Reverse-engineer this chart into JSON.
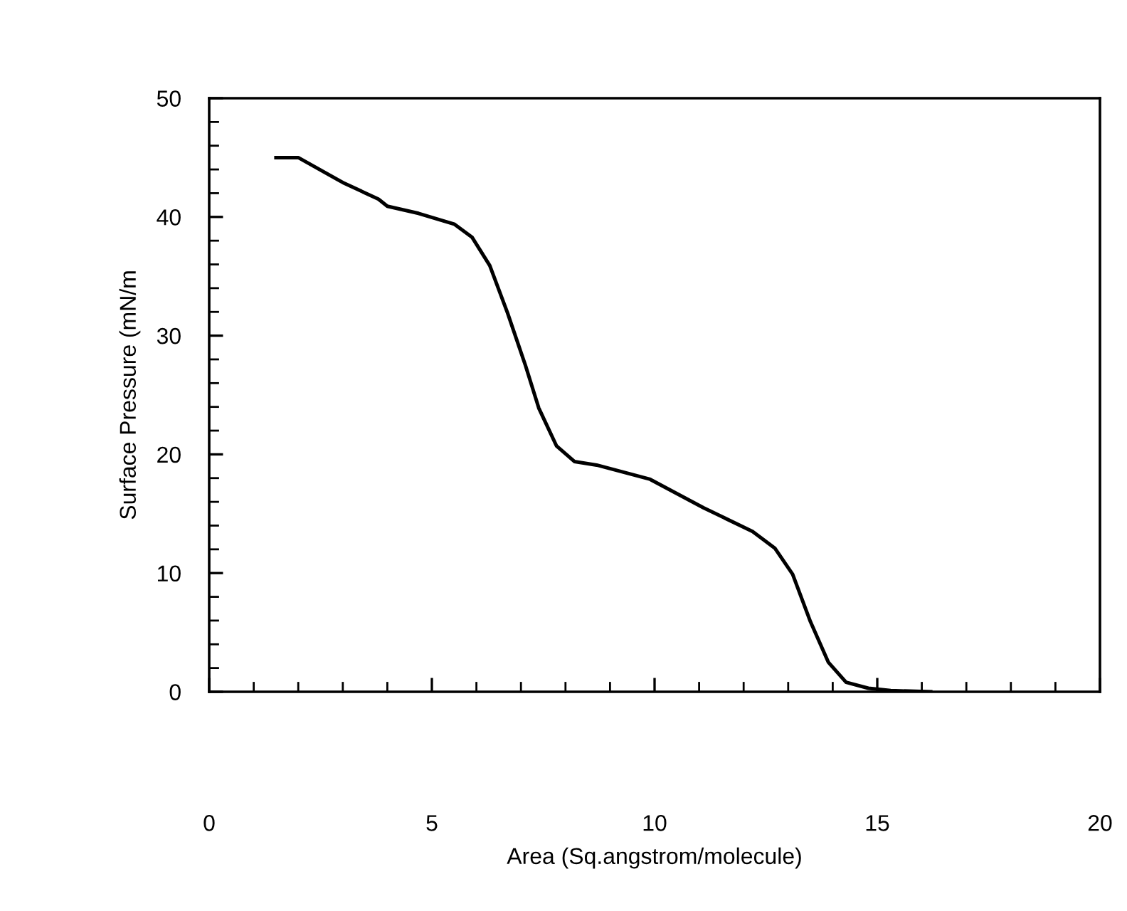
{
  "chart_data": {
    "type": "line",
    "xlabel": "Area (Sq.angstrom/molecule)",
    "ylabel": "Surface Pressure (mN/m",
    "xlim": [
      0,
      20
    ],
    "ylim": [
      0,
      50
    ],
    "xticks": [
      0,
      {
        "value": 1,
        "label": null
      },
      {
        "value": 2,
        "label": null
      },
      {
        "value": 3,
        "label": null
      },
      {
        "value": 4,
        "label": null
      },
      5,
      {
        "value": 6,
        "label": null
      },
      {
        "value": 7,
        "label": null
      },
      {
        "value": 8,
        "label": null
      },
      {
        "value": 9,
        "label": null
      },
      10,
      {
        "value": 11,
        "label": null
      },
      {
        "value": 12,
        "label": null
      },
      {
        "value": 13,
        "label": null
      },
      {
        "value": 14,
        "label": null
      },
      15,
      {
        "value": 16,
        "label": null
      },
      {
        "value": 17,
        "label": null
      },
      {
        "value": 18,
        "label": null
      },
      {
        "value": 19,
        "label": null
      },
      20
    ],
    "yticks": [
      0,
      {
        "value": 2,
        "label": null
      },
      {
        "value": 4,
        "label": null
      },
      {
        "value": 6,
        "label": null
      },
      {
        "value": 8,
        "label": null
      },
      10,
      {
        "value": 12,
        "label": null
      },
      {
        "value": 14,
        "label": null
      },
      {
        "value": 16,
        "label": null
      },
      {
        "value": 18,
        "label": null
      },
      20,
      {
        "value": 22,
        "label": null
      },
      {
        "value": 24,
        "label": null
      },
      {
        "value": 26,
        "label": null
      },
      {
        "value": 28,
        "label": null
      },
      30,
      {
        "value": 32,
        "label": null
      },
      {
        "value": 34,
        "label": null
      },
      {
        "value": 36,
        "label": null
      },
      {
        "value": 38,
        "label": null
      },
      40,
      {
        "value": 42,
        "label": null
      },
      {
        "value": 44,
        "label": null
      },
      {
        "value": 46,
        "label": null
      },
      {
        "value": 48,
        "label": null
      },
      50
    ],
    "grid": false,
    "marker": "none",
    "line_style": "solid",
    "series": [
      {
        "color": "#000000",
        "x": [
          1.5,
          2.0,
          3.0,
          3.8,
          4.0,
          4.7,
          5.5,
          5.9,
          6.3,
          6.7,
          7.1,
          7.4,
          7.8,
          8.2,
          8.7,
          9.9,
          11.1,
          12.2,
          12.7,
          13.1,
          13.5,
          13.9,
          14.3,
          14.8,
          15.3,
          16.2
        ],
        "values": [
          45.0,
          45.0,
          42.9,
          41.5,
          40.9,
          40.3,
          39.4,
          38.3,
          35.9,
          31.9,
          27.5,
          23.9,
          20.7,
          19.4,
          19.1,
          17.9,
          15.5,
          13.5,
          12.1,
          9.9,
          5.9,
          2.5,
          0.8,
          0.3,
          0.1,
          0.0
        ]
      }
    ]
  }
}
